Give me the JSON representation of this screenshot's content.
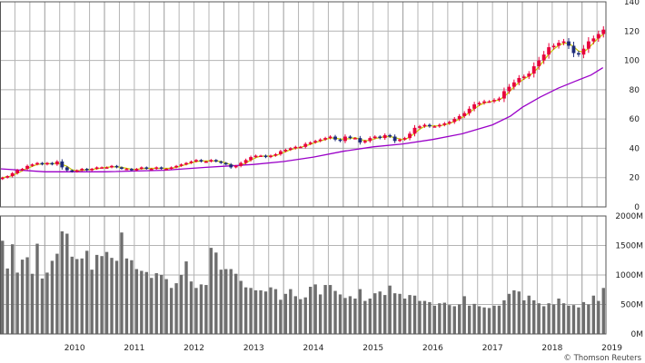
{
  "chart_data": [
    {
      "type": "candlestick",
      "title": "",
      "xlabel": "",
      "ylabel": "",
      "x_axis": {
        "start": 2009.25,
        "end": 2019.4
      },
      "ylim": [
        0,
        140
      ],
      "y_ticks": [
        0,
        20,
        40,
        60,
        80,
        100,
        120,
        140
      ],
      "grid": true,
      "colors": {
        "up": "#e8003d",
        "down": "#1f2c7a",
        "ma_short": "#c8c800",
        "ma_long": "#9a00c8",
        "grid": "#b4b4b4"
      },
      "candles_monthly_close": [
        20,
        21,
        23,
        25,
        26,
        28,
        29,
        30,
        29,
        30,
        29,
        31,
        27,
        25,
        24,
        25,
        26,
        25,
        26,
        27,
        27,
        27,
        28,
        27,
        26,
        26,
        25,
        26,
        27,
        26,
        26,
        27,
        26,
        26,
        27,
        28,
        29,
        30,
        31,
        32,
        31,
        31,
        32,
        31,
        30,
        29,
        27,
        28,
        30,
        32,
        34,
        35,
        35,
        34,
        35,
        36,
        38,
        39,
        40,
        41,
        41,
        43,
        44,
        45,
        46,
        47,
        48,
        46,
        45,
        48,
        47,
        47,
        44,
        45,
        47,
        48,
        47,
        49,
        48,
        45,
        46,
        47,
        50,
        54,
        55,
        56,
        55,
        55,
        56,
        57,
        58,
        60,
        62,
        64,
        67,
        70,
        71,
        72,
        72,
        73,
        74,
        79,
        82,
        85,
        88,
        89,
        91,
        96,
        100,
        104,
        109,
        110,
        112,
        113,
        110,
        105,
        104,
        108,
        113,
        115,
        118,
        121
      ],
      "ma_long_points": [
        [
          2009.25,
          26
        ],
        [
          2010.0,
          24
        ],
        [
          2011.0,
          24
        ],
        [
          2012.0,
          25
        ],
        [
          2012.7,
          27
        ],
        [
          2013.5,
          29
        ],
        [
          2014.0,
          31
        ],
        [
          2014.5,
          34
        ],
        [
          2015.0,
          38
        ],
        [
          2015.5,
          41
        ],
        [
          2016.0,
          43
        ],
        [
          2016.5,
          46
        ],
        [
          2017.0,
          50
        ],
        [
          2017.5,
          56
        ],
        [
          2017.8,
          62
        ],
        [
          2018.0,
          68
        ],
        [
          2018.3,
          75
        ],
        [
          2018.6,
          81
        ],
        [
          2018.9,
          86
        ],
        [
          2019.15,
          90
        ],
        [
          2019.35,
          95
        ]
      ]
    },
    {
      "type": "bar",
      "title": "",
      "x_axis": {
        "start": 2009.25,
        "end": 2019.4
      },
      "ylim": [
        0,
        2000
      ],
      "y_tick_labels": [
        "0M",
        "500M",
        "1000M",
        "1500M",
        "2000M"
      ],
      "x_tick_labels": [
        "2010",
        "2011",
        "2012",
        "2013",
        "2014",
        "2015",
        "2016",
        "2017",
        "2018",
        "2019"
      ],
      "grid": true,
      "color": "#6e6e6e",
      "values": [
        1580,
        1110,
        1520,
        1040,
        1260,
        1300,
        1020,
        1530,
        940,
        1040,
        1240,
        1360,
        1740,
        1700,
        1310,
        1270,
        1280,
        1410,
        1090,
        1340,
        1320,
        1390,
        1290,
        1240,
        1720,
        1280,
        1250,
        1100,
        1070,
        1050,
        950,
        1030,
        1000,
        930,
        780,
        860,
        1000,
        1230,
        890,
        780,
        840,
        830,
        1460,
        1380,
        1090,
        1100,
        1100,
        1020,
        900,
        790,
        780,
        740,
        740,
        720,
        790,
        760,
        580,
        680,
        760,
        640,
        590,
        620,
        800,
        840,
        670,
        830,
        830,
        730,
        670,
        610,
        640,
        600,
        760,
        560,
        600,
        690,
        720,
        660,
        820,
        690,
        680,
        600,
        660,
        650,
        560,
        560,
        540,
        480,
        520,
        530,
        490,
        470,
        500,
        640,
        480,
        510,
        470,
        450,
        440,
        480,
        480,
        570,
        680,
        740,
        720,
        570,
        650,
        570,
        520,
        470,
        520,
        500,
        600,
        520,
        480,
        490,
        450,
        540,
        500,
        650,
        560,
        780
      ],
      "credit": "© Thomson Reuters"
    }
  ]
}
